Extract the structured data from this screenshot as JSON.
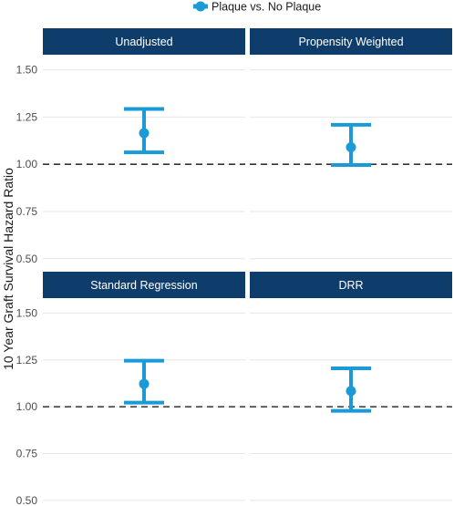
{
  "chart_data": {
    "type": "errorbar",
    "ylabel": "10 Year Graft Survival Hazard Ratio",
    "legend": {
      "position": "top",
      "entries": [
        "Plaque vs. No Plaque"
      ]
    },
    "colors": {
      "series": "#1a9ad6",
      "strip": "#0f3d6b",
      "grid": "#e6e6e6",
      "reference": "#333333"
    },
    "ylim": [
      0.5,
      1.5
    ],
    "yticks": [
      "0.50",
      "0.75",
      "1.00",
      "1.25",
      "1.50"
    ],
    "reference_line": 1.0,
    "grid": true,
    "panels": [
      {
        "title": "Unadjusted",
        "estimate": 1.165,
        "lower": 1.063,
        "upper": 1.293
      },
      {
        "title": "Propensity Weighted",
        "estimate": 1.09,
        "lower": 0.996,
        "upper": 1.209
      },
      {
        "title": "Standard Regression",
        "estimate": 1.122,
        "lower": 1.022,
        "upper": 1.246
      },
      {
        "title": "DRR",
        "estimate": 1.084,
        "lower": 0.978,
        "upper": 1.205
      }
    ]
  }
}
